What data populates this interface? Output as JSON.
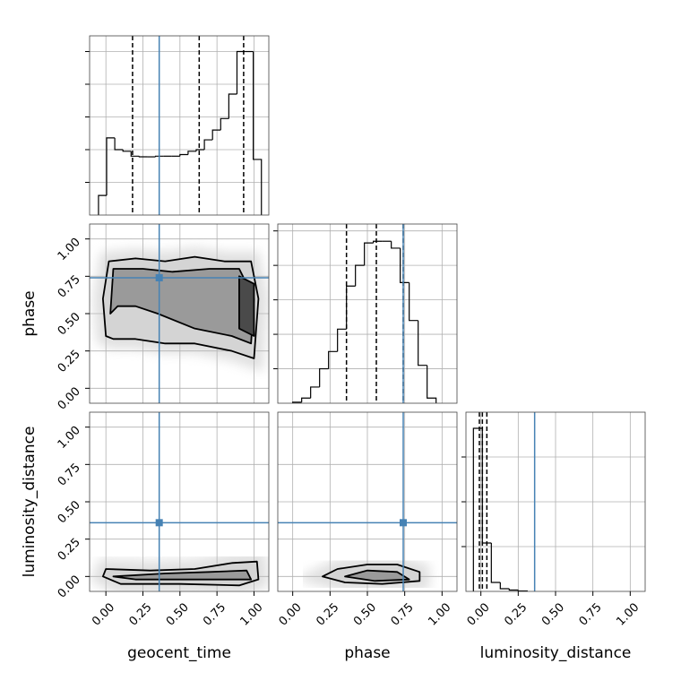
{
  "chart_data": {
    "type": "corner",
    "grid": true,
    "truth_color": "#4682b4",
    "hist_color": "#000000",
    "parameters": [
      {
        "label": "geocent_time",
        "lim": [
          -0.11,
          1.1
        ],
        "truth": 0.36,
        "quantiles": [
          0.18,
          0.63,
          0.93
        ],
        "ticks": [
          {
            "value": 0,
            "label": "0.00"
          },
          {
            "value": 0.25,
            "label": "0.25"
          },
          {
            "value": 0.5,
            "label": "0.50"
          },
          {
            "value": 0.75,
            "label": "0.75"
          },
          {
            "value": 1,
            "label": "1.00"
          }
        ]
      },
      {
        "label": "phase",
        "lim": [
          -0.1,
          1.1
        ],
        "truth": 0.74,
        "quantiles": [
          0.36,
          0.56,
          0.74
        ],
        "ticks": [
          {
            "value": 0,
            "label": "0.00"
          },
          {
            "value": 0.25,
            "label": "0.25"
          },
          {
            "value": 0.5,
            "label": "0.50"
          },
          {
            "value": 0.75,
            "label": "0.75"
          },
          {
            "value": 1,
            "label": "1.00"
          }
        ]
      },
      {
        "label": "luminosity_distance",
        "lim": [
          -0.1,
          1.1
        ],
        "truth": 0.36,
        "quantiles": [
          -0.01,
          0.01,
          0.04
        ],
        "ticks": [
          {
            "value": 0,
            "label": "0.00"
          },
          {
            "value": 0.25,
            "label": "0.25"
          },
          {
            "value": 0.5,
            "label": "0.50"
          },
          {
            "value": 0.75,
            "label": "0.75"
          },
          {
            "value": 1,
            "label": "1.00"
          }
        ]
      }
    ],
    "histograms": [
      {
        "bins": [
          -0.05,
          0.005,
          0.06,
          0.115,
          0.17,
          0.225,
          0.28,
          0.335,
          0.39,
          0.445,
          0.5,
          0.555,
          0.61,
          0.665,
          0.72,
          0.775,
          0.83,
          0.885,
          0.94,
          0.995,
          1.05
        ],
        "counts": [
          0.6,
          2.36,
          2.0,
          1.95,
          1.8,
          1.78,
          1.78,
          1.8,
          1.8,
          1.8,
          1.85,
          1.95,
          2.0,
          2.3,
          2.6,
          2.95,
          3.7,
          5.0,
          5.0,
          1.7
        ],
        "ylim": [
          0,
          5.48
        ],
        "yticks": [
          1,
          2,
          3,
          4,
          5
        ]
      },
      {
        "bins": [
          0,
          0.06,
          0.12,
          0.18,
          0.24,
          0.3,
          0.36,
          0.42,
          0.48,
          0.54,
          0.6,
          0.66,
          0.72,
          0.78,
          0.84,
          0.9,
          0.96
        ],
        "counts": [
          0.03,
          0.15,
          0.47,
          1.0,
          1.5,
          2.15,
          3.4,
          4.0,
          4.65,
          4.7,
          4.7,
          4.5,
          3.5,
          2.4,
          1.1,
          0.15
        ],
        "ylim": [
          0,
          5.2
        ],
        "yticks": [
          1,
          2,
          3,
          4,
          5
        ]
      },
      {
        "bins": [
          -0.05,
          0.01,
          0.07,
          0.13,
          0.19,
          0.25,
          0.31
        ],
        "counts": [
          3.64,
          1.08,
          0.2,
          0.06,
          0.03,
          0.01
        ],
        "ylim": [
          0,
          4
        ],
        "yticks": [
          1,
          2,
          3
        ]
      }
    ],
    "pairs": [
      {
        "contours": [
          {
            "x": [
              0.0,
              -0.02,
              0.02,
              0.2,
              0.4,
              0.6,
              0.8,
              0.98,
              1.03,
              1.0,
              0.85,
              0.6,
              0.4,
              0.2,
              0.05
            ],
            "y": [
              0.35,
              0.6,
              0.85,
              0.87,
              0.85,
              0.88,
              0.85,
              0.85,
              0.6,
              0.2,
              0.25,
              0.3,
              0.3,
              0.33,
              0.33
            ]
          },
          {
            "x": [
              0.03,
              0.05,
              0.25,
              0.45,
              0.7,
              0.9,
              1.0,
              0.98,
              0.85,
              0.6,
              0.35,
              0.2,
              0.08
            ],
            "y": [
              0.5,
              0.8,
              0.8,
              0.78,
              0.8,
              0.8,
              0.6,
              0.3,
              0.35,
              0.4,
              0.5,
              0.55,
              0.55
            ]
          },
          {
            "x": [
              0.9,
              0.9,
              1.0,
              1.0
            ],
            "y": [
              0.4,
              0.75,
              0.7,
              0.35
            ]
          }
        ]
      },
      {
        "contours": [
          {
            "x": [
              -0.02,
              0.0,
              0.3,
              0.6,
              0.85,
              1.02,
              1.03,
              0.9,
              0.5,
              0.1
            ],
            "y": [
              0.0,
              0.05,
              0.04,
              0.05,
              0.09,
              0.1,
              -0.02,
              -0.06,
              -0.05,
              -0.05
            ]
          },
          {
            "x": [
              0.05,
              0.4,
              0.7,
              0.95,
              0.98,
              0.6,
              0.2
            ],
            "y": [
              0.0,
              0.02,
              0.03,
              0.04,
              -0.02,
              -0.02,
              -0.02
            ]
          }
        ]
      },
      {
        "contours": [
          {
            "x": [
              0.2,
              0.3,
              0.5,
              0.7,
              0.85,
              0.85,
              0.6,
              0.35
            ],
            "y": [
              0.0,
              0.05,
              0.08,
              0.08,
              0.03,
              -0.03,
              -0.05,
              -0.04
            ]
          },
          {
            "x": [
              0.35,
              0.5,
              0.7,
              0.78,
              0.55
            ],
            "y": [
              0.0,
              0.04,
              0.03,
              -0.02,
              -0.03
            ]
          }
        ]
      }
    ]
  }
}
